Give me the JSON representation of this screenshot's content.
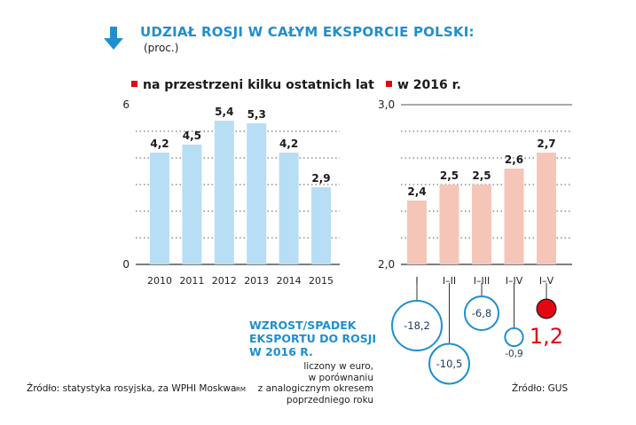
{
  "title": "UDZIAŁ ROSJI W CAŁYM EKSPORCIE POLSKI:",
  "subtitle": "(proc.)",
  "legend_left": "na przestrzeni kilku ostatnich lat",
  "legend_right": "w 2016 r.",
  "colors": {
    "blue_bar": "#b8def6",
    "pink_bar": "#f5c6b8",
    "accent_blue": "#1f8fd0",
    "accent_red": "#e30613"
  },
  "chart_data": [
    {
      "type": "bar",
      "categories": [
        "2010",
        "2011",
        "2012",
        "2013",
        "2014",
        "2015"
      ],
      "values": [
        4.2,
        4.5,
        5.4,
        5.3,
        4.2,
        2.9
      ],
      "value_labels": [
        "4,2",
        "4,5",
        "5,4",
        "5,3",
        "4,2",
        "2,9"
      ],
      "y_ticks": [
        "0",
        "6"
      ],
      "ylim": [
        0,
        6
      ]
    },
    {
      "type": "bar",
      "categories": [
        "I",
        "I–II",
        "I–III",
        "I–IV",
        "I–V"
      ],
      "values": [
        2.4,
        2.5,
        2.5,
        2.6,
        2.7
      ],
      "value_labels": [
        "2,4",
        "2,5",
        "2,5",
        "2,6",
        "2,7"
      ],
      "y_ticks": [
        "2,0",
        "3,0"
      ],
      "ylim": [
        2.0,
        3.0
      ]
    },
    {
      "type": "scatter",
      "categories": [
        "I",
        "I–II",
        "I–III",
        "I–IV",
        "I–V"
      ],
      "values": [
        -18.2,
        -10.5,
        -6.8,
        -0.9,
        1.2
      ],
      "value_labels": [
        "-18,2",
        "-10,5",
        "-6,8",
        "-0,9",
        "1,2"
      ]
    }
  ],
  "growth_title": "WZROST/SPADEK\nEKSPORTU DO ROSJI\nW 2016 R.",
  "growth_desc": "liczony w euro,\nw porównaniu\nz analogicznym okresem\npoprzedniego roku",
  "source_left": "Źródło: statystyka rosyjska, za WPHI Moskwa",
  "rm": "RM",
  "source_right": "Źródło: GUS"
}
